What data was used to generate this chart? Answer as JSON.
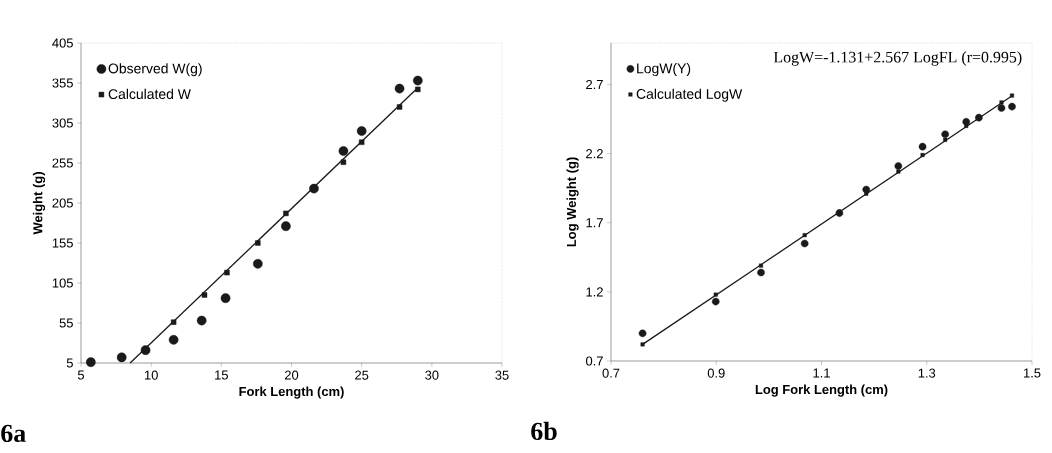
{
  "chart_data": [
    {
      "type": "scatter",
      "xlabel": "Fork Length (cm)",
      "ylabel": "Weight (g)",
      "xlim": [
        5,
        35
      ],
      "xticks": [
        5,
        10,
        15,
        20,
        25,
        30,
        35
      ],
      "ylim": [
        5,
        405
      ],
      "yticks": [
        5,
        55,
        105,
        155,
        205,
        255,
        305,
        355,
        405
      ],
      "legend": "top left",
      "grid": false,
      "annotations": [
        "6a"
      ],
      "series": [
        {
          "name": "Observed  W(g)",
          "marker": "circle",
          "color": "#1a1a1a",
          "x": [
            5.7,
            7.9,
            9.6,
            11.6,
            13.6,
            15.3,
            17.6,
            19.6,
            21.6,
            23.7,
            25.0,
            27.7,
            29.0
          ],
          "values": [
            6,
            12,
            21,
            34,
            58,
            86,
            129,
            176,
            223,
            270,
            295,
            348,
            358
          ]
        },
        {
          "name": "Calculated W",
          "marker": "square",
          "color": "#1a1a1a",
          "x": [
            11.6,
            13.8,
            15.4,
            17.6,
            19.6,
            21.6,
            23.7,
            25.0,
            27.7,
            29.0
          ],
          "values": [
            56,
            90,
            118,
            155,
            192,
            null,
            256,
            281,
            325,
            347
          ]
        },
        {
          "type": "line",
          "marker": "none",
          "color": "#1a1a1a",
          "x": [
            8.5,
            29.0
          ],
          "values": [
            5,
            349
          ]
        }
      ]
    },
    {
      "type": "scatter",
      "xlabel": "Log Fork Length (cm)",
      "ylabel": "Log Weight (g)",
      "xlim": [
        0.7,
        1.5
      ],
      "xticks": [
        0.7,
        0.9,
        1.1,
        1.3,
        1.5
      ],
      "ylim": [
        0.7,
        3.0
      ],
      "yticks": [
        0.7,
        1.2,
        1.7,
        2.2,
        2.7
      ],
      "legend": "top left",
      "grid": false,
      "annotations": [
        "LogW=-1.131+2.567 LogFL (r=0.995)",
        "6b"
      ],
      "series": [
        {
          "name": "LogW(Y)",
          "marker": "circle",
          "color": "#1a1a1a",
          "x": [
            0.76,
            0.899,
            0.985,
            1.068,
            1.134,
            1.185,
            1.246,
            1.292,
            1.335,
            1.375,
            1.399,
            1.442,
            1.462
          ],
          "values": [
            0.9,
            1.13,
            1.34,
            1.55,
            1.77,
            1.94,
            2.11,
            2.25,
            2.34,
            2.43,
            2.46,
            2.53,
            2.54
          ]
        },
        {
          "name": "Calculated LogW",
          "marker": "square",
          "color": "#1a1a1a",
          "x": [
            0.76,
            0.899,
            0.985,
            1.068,
            1.134,
            1.185,
            1.246,
            1.292,
            1.335,
            1.375,
            1.399,
            1.442,
            1.462
          ],
          "values": [
            0.82,
            1.18,
            1.39,
            1.61,
            1.78,
            1.91,
            2.07,
            2.19,
            2.3,
            2.4,
            null,
            2.57,
            2.62
          ]
        },
        {
          "type": "line",
          "marker": "none",
          "color": "#1a1a1a",
          "x": [
            0.76,
            1.463
          ],
          "values": [
            0.82,
            2.62
          ]
        }
      ]
    }
  ]
}
